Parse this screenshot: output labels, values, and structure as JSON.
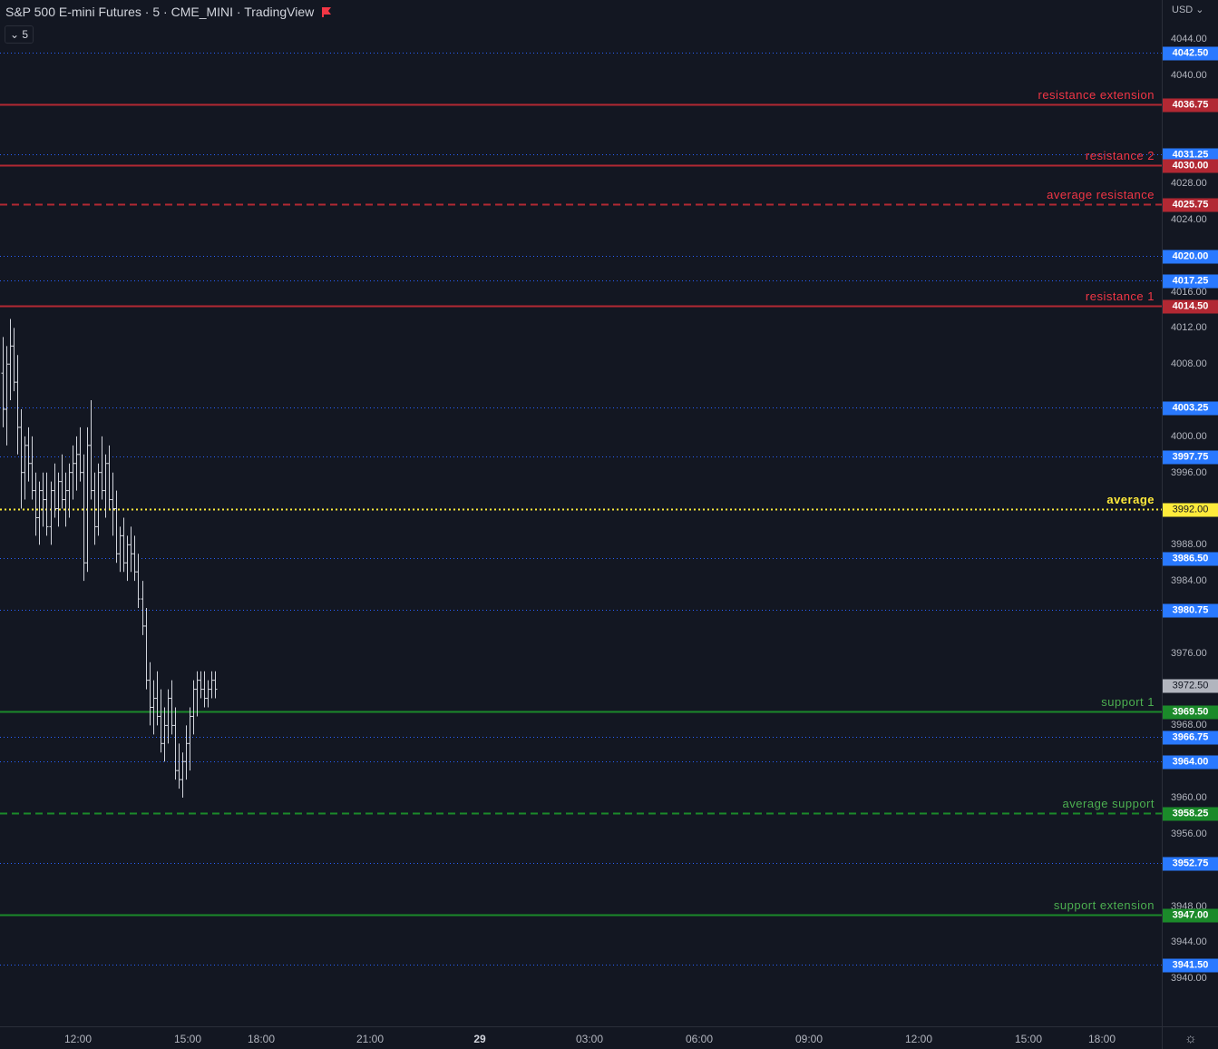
{
  "header": {
    "title": "S&P 500 E-mini Futures · 5 · CME_MINI · TradingView",
    "interval_button": "5",
    "currency": "USD"
  },
  "colors": {
    "background": "#131722",
    "resistance": "#b22833",
    "resistance_text": "#f23645",
    "support": "#1b8a2a",
    "support_text": "#4caf50",
    "average": "#ffeb3b",
    "dotted_level": "#2962ff",
    "price_label_blue": "#2979ff",
    "candle": "#d1d4dc"
  },
  "price_axis": {
    "min": 3937.0,
    "max": 4046.5,
    "ticks": [
      "4044.00",
      "4040.00",
      "4028.00",
      "4024.00",
      "4016.00",
      "4012.00",
      "4008.00",
      "4000.00",
      "3996.00",
      "3988.00",
      "3984.00",
      "3976.00",
      "3968.00",
      "3960.00",
      "3956.00",
      "3948.00",
      "3944.00",
      "3940.00"
    ]
  },
  "levels": [
    {
      "price": 4042.5,
      "label": "4042.50",
      "kind": "dotted"
    },
    {
      "price": 4036.75,
      "label": "4036.75",
      "kind": "resistance",
      "name": "resistance extension"
    },
    {
      "price": 4031.25,
      "label": "4031.25",
      "kind": "dotted"
    },
    {
      "price": 4030.0,
      "label": "4030.00",
      "kind": "resistance",
      "name": "resistance 2"
    },
    {
      "price": 4025.75,
      "label": "4025.75",
      "kind": "resistance-dashed",
      "name": "average resistance"
    },
    {
      "price": 4020.0,
      "label": "4020.00",
      "kind": "dotted"
    },
    {
      "price": 4017.25,
      "label": "4017.25",
      "kind": "dotted"
    },
    {
      "price": 4014.5,
      "label": "4014.50",
      "kind": "resistance",
      "name": "resistance 1"
    },
    {
      "price": 4003.25,
      "label": "4003.25",
      "kind": "dotted"
    },
    {
      "price": 3997.75,
      "label": "3997.75",
      "kind": "dotted"
    },
    {
      "price": 3992.0,
      "label": "3992.00",
      "kind": "average",
      "name": "average"
    },
    {
      "price": 3986.5,
      "label": "3986.50",
      "kind": "dotted"
    },
    {
      "price": 3980.75,
      "label": "3980.75",
      "kind": "dotted"
    },
    {
      "price": 3969.5,
      "label": "3969.50",
      "kind": "support",
      "name": "support 1"
    },
    {
      "price": 3966.75,
      "label": "3966.75",
      "kind": "dotted"
    },
    {
      "price": 3964.0,
      "label": "3964.00",
      "kind": "dotted"
    },
    {
      "price": 3958.25,
      "label": "3958.25",
      "kind": "support-dashed",
      "name": "average support"
    },
    {
      "price": 3952.75,
      "label": "3952.75",
      "kind": "dotted"
    },
    {
      "price": 3947.0,
      "label": "3947.00",
      "kind": "support",
      "name": "support extension"
    },
    {
      "price": 3941.5,
      "label": "3941.50",
      "kind": "dotted"
    }
  ],
  "last_price": {
    "price": 3972.5,
    "label": "3972.50"
  },
  "time_axis": {
    "labels": [
      "12:00",
      "15:00",
      "18:00",
      "21:00",
      "29",
      "03:00",
      "06:00",
      "09:00",
      "12:00",
      "15:00",
      "18:00"
    ],
    "bold_label": "29",
    "bar_minutes": 5,
    "first_bar_time": "10:00",
    "visible_session": [
      "10:00",
      "18:00"
    ]
  },
  "chart_data": {
    "type": "ohlc",
    "note_units": "price in USD, bar index = 5-minute bars starting 10:00",
    "bars": [
      [
        4007,
        4011,
        4001,
        4003
      ],
      [
        4003,
        4010,
        3999,
        4008
      ],
      [
        4008,
        4013,
        4004,
        4010
      ],
      [
        4010,
        4012,
        4005,
        4006
      ],
      [
        4006,
        4009,
        3998,
        4001
      ],
      [
        4001,
        4003,
        3992,
        3996
      ],
      [
        3996,
        4000,
        3993,
        3999
      ],
      [
        3999,
        4001,
        3995,
        3997
      ],
      [
        3997,
        4000,
        3993,
        3994
      ],
      [
        3994,
        3996,
        3989,
        3991
      ],
      [
        3991,
        3995,
        3988,
        3994
      ],
      [
        3994,
        3996,
        3990,
        3993
      ],
      [
        3993,
        3996,
        3989,
        3990
      ],
      [
        3990,
        3995,
        3988,
        3994
      ],
      [
        3994,
        3997,
        3991,
        3992
      ],
      [
        3992,
        3996,
        3990,
        3995
      ],
      [
        3995,
        3998,
        3992,
        3993
      ],
      [
        3993,
        3996,
        3990,
        3994
      ],
      [
        3994,
        3997,
        3991,
        3996
      ],
      [
        3996,
        3999,
        3993,
        3997
      ],
      [
        3997,
        4000,
        3994,
        3998
      ],
      [
        3998,
        4001,
        3995,
        3996
      ],
      [
        3996,
        3998,
        3984,
        3986
      ],
      [
        3986,
        4001,
        3985,
        3999
      ],
      [
        3999,
        4004,
        3993,
        3994
      ],
      [
        3994,
        3996,
        3988,
        3990
      ],
      [
        3990,
        3997,
        3989,
        3996
      ],
      [
        3996,
        4000,
        3993,
        3994
      ],
      [
        3994,
        3998,
        3991,
        3997
      ],
      [
        3997,
        3999,
        3992,
        3993
      ],
      [
        3993,
        3996,
        3989,
        3992
      ],
      [
        3992,
        3994,
        3986,
        3987
      ],
      [
        3987,
        3990,
        3985,
        3989
      ],
      [
        3989,
        3991,
        3985,
        3986
      ],
      [
        3986,
        3989,
        3984,
        3988
      ],
      [
        3988,
        3990,
        3985,
        3987
      ],
      [
        3987,
        3989,
        3984,
        3985
      ],
      [
        3985,
        3987,
        3981,
        3982
      ],
      [
        3982,
        3984,
        3978,
        3979
      ],
      [
        3979,
        3981,
        3972,
        3973
      ],
      [
        3973,
        3975,
        3968,
        3970
      ],
      [
        3970,
        3973,
        3967,
        3971
      ],
      [
        3971,
        3974,
        3968,
        3969
      ],
      [
        3969,
        3972,
        3965,
        3966
      ],
      [
        3966,
        3970,
        3964,
        3968
      ],
      [
        3968,
        3972,
        3966,
        3971
      ],
      [
        3971,
        3973,
        3967,
        3968
      ],
      [
        3968,
        3970,
        3962,
        3963
      ],
      [
        3963,
        3966,
        3961,
        3962
      ],
      [
        3962,
        3965,
        3960,
        3964
      ],
      [
        3964,
        3968,
        3962,
        3966
      ],
      [
        3966,
        3970,
        3963,
        3969
      ],
      [
        3969,
        3973,
        3967,
        3972
      ],
      [
        3972,
        3974,
        3969,
        3973
      ],
      [
        3973,
        3974,
        3971,
        3972
      ],
      [
        3972,
        3974,
        3970,
        3971
      ],
      [
        3971,
        3973,
        3970,
        3972
      ],
      [
        3972,
        3974,
        3971,
        3973
      ],
      [
        3973,
        3974,
        3971,
        3972
      ]
    ]
  }
}
